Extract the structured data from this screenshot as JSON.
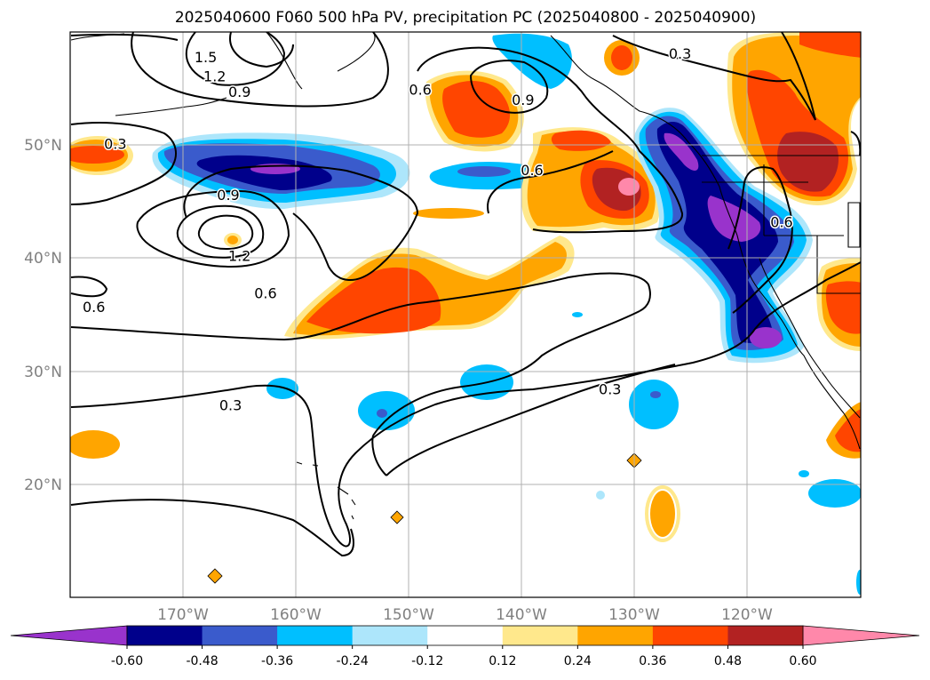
{
  "chart_data": {
    "type": "contour_map",
    "title": "2025040600 F060 500 hPa PV, precipitation PC (2025040800 - 2025040900)",
    "x_ticks": [
      "170°W",
      "160°W",
      "150°W",
      "140°W",
      "130°W",
      "120°W"
    ],
    "y_ticks": [
      "50°N",
      "40°N",
      "30°N",
      "20°N"
    ],
    "lon_range": [
      -180,
      -110
    ],
    "lat_range": [
      10,
      60
    ],
    "grid": true,
    "colorbar": {
      "orientation": "horizontal",
      "extend": "both",
      "ticks": [
        "-0.60",
        "-0.48",
        "-0.36",
        "-0.24",
        "-0.12",
        "0.12",
        "0.24",
        "0.36",
        "0.48",
        "0.60"
      ],
      "colors": [
        "#9933cc",
        "#00008b",
        "#3a5bcc",
        "#00bfff",
        "#ade6fb",
        "#ffffff",
        "#ffe88c",
        "#ffa500",
        "#ff4500",
        "#b22222",
        "#ff88aa"
      ]
    },
    "contour_labels": [
      {
        "value": "1.5",
        "lon": -168.0,
        "lat": 57.7
      },
      {
        "value": "1.2",
        "lon": -167.2,
        "lat": 56.0
      },
      {
        "value": "0.9",
        "lon": -165.0,
        "lat": 54.6
      },
      {
        "value": "0.3",
        "lon": -176.0,
        "lat": 50.0
      },
      {
        "value": "0.6",
        "lon": -149.0,
        "lat": 54.8
      },
      {
        "value": "0.9",
        "lon": -139.9,
        "lat": 53.9
      },
      {
        "value": "0.3",
        "lon": -126.0,
        "lat": 58.0
      },
      {
        "value": "0.9",
        "lon": -166.0,
        "lat": 45.5
      },
      {
        "value": "1.2",
        "lon": -165.0,
        "lat": 40.1
      },
      {
        "value": "0.6",
        "lon": -139.1,
        "lat": 47.7
      },
      {
        "value": "0.6",
        "lon": -117.0,
        "lat": 43.1
      },
      {
        "value": "0.6",
        "lon": -162.7,
        "lat": 36.8
      },
      {
        "value": "0.6",
        "lon": -177.9,
        "lat": 35.6
      },
      {
        "value": "0.3",
        "lon": -165.8,
        "lat": 26.9
      },
      {
        "value": "0.3",
        "lon": -132.2,
        "lat": 28.3
      }
    ]
  }
}
